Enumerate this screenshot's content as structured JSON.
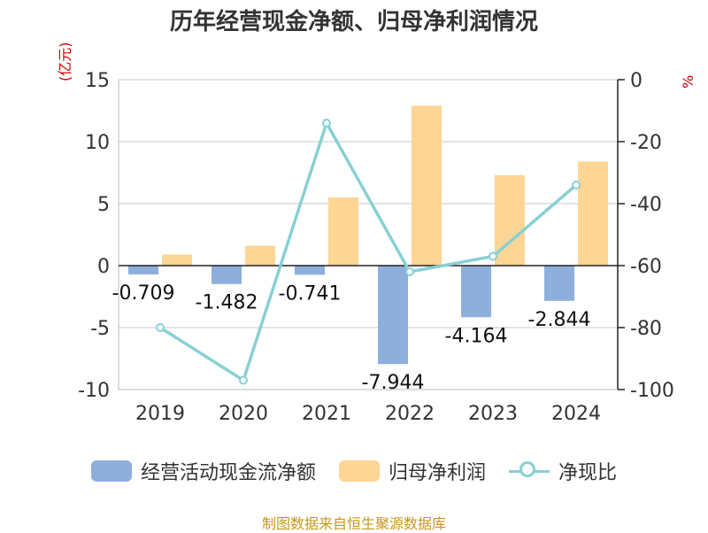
{
  "title": "历年经营现金净额、归母净利润情况",
  "source": "制图数据来自恒生聚源数据库",
  "chart_data": {
    "type": "bar",
    "categories": [
      "2019",
      "2020",
      "2021",
      "2022",
      "2023",
      "2024"
    ],
    "left_unit": "(亿元)",
    "right_unit": "%",
    "left_axis": {
      "min": -10,
      "max": 15,
      "ticks": [
        15,
        10,
        5,
        0,
        -5,
        -10
      ]
    },
    "right_axis": {
      "min": -100,
      "max": 0,
      "ticks": [
        0,
        -20,
        -40,
        -60,
        -80,
        -100
      ]
    },
    "series": [
      {
        "name": "经营活动现金流净额",
        "type": "bar",
        "axis": "left",
        "color": "#8eaedc",
        "values": [
          -0.709,
          -1.482,
          -0.741,
          -7.944,
          -4.164,
          -2.844
        ],
        "labels": [
          "-0.709",
          "-1.482",
          "-0.741",
          "-7.944",
          "-4.164",
          "-2.844"
        ]
      },
      {
        "name": "归母净利润",
        "type": "bar",
        "axis": "left",
        "color": "#fdd594",
        "values": [
          0.9,
          1.6,
          5.5,
          12.9,
          7.3,
          8.4
        ]
      },
      {
        "name": "净现比",
        "type": "line",
        "axis": "right",
        "color": "#88d0d4",
        "values": [
          -80,
          -97,
          -14,
          -62,
          -57,
          -34
        ]
      }
    ],
    "legend_position": "bottom",
    "grid": true
  }
}
